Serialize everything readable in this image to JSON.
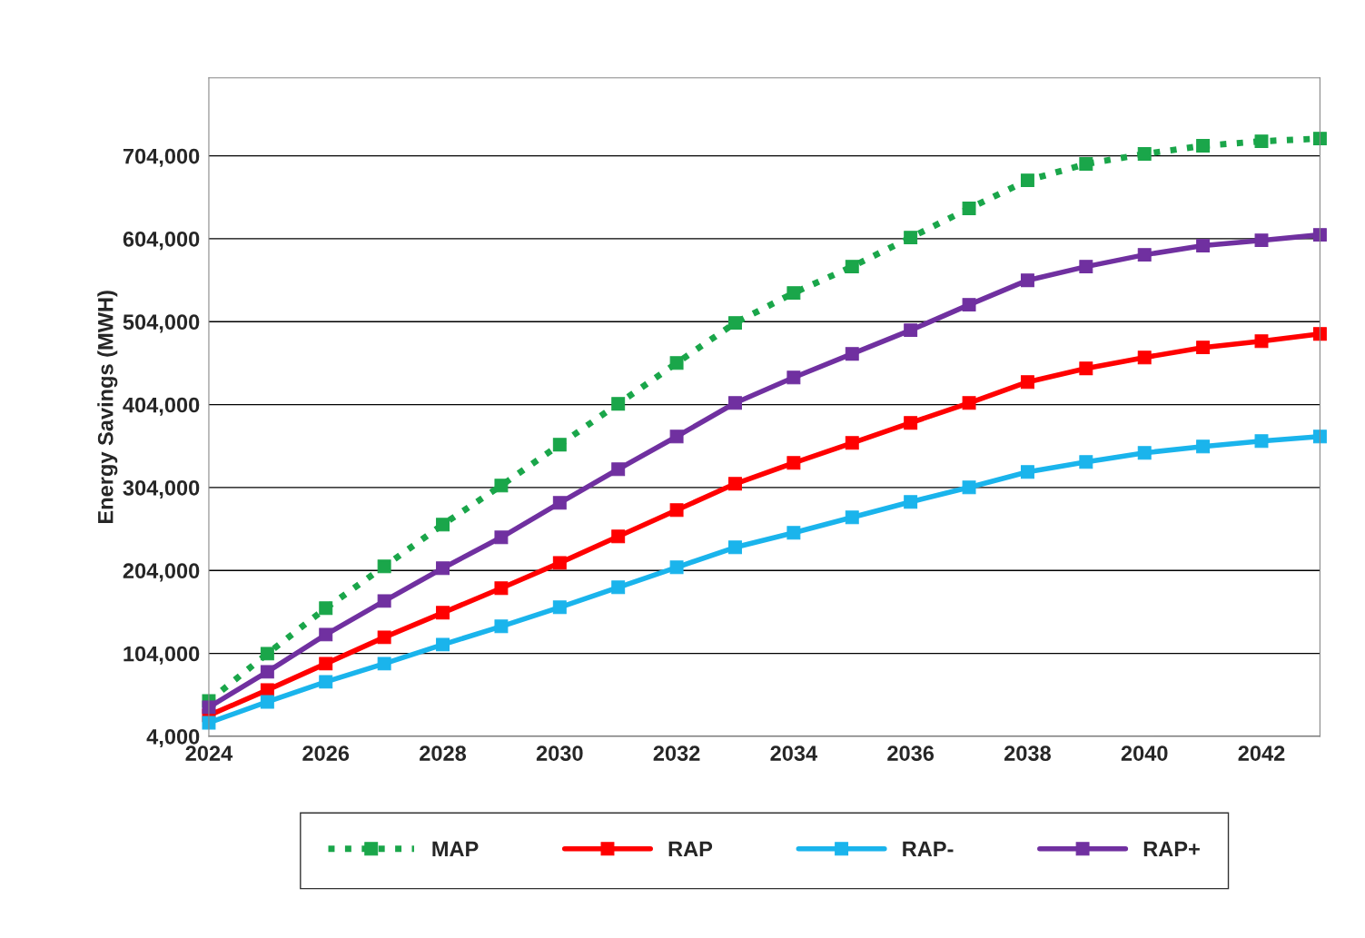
{
  "chart_data": {
    "type": "line",
    "ylabel": "Energy Savings (MWH)",
    "x": [
      2024,
      2025,
      2026,
      2027,
      2028,
      2029,
      2030,
      2031,
      2032,
      2033,
      2034,
      2035,
      2036,
      2037,
      2038,
      2039,
      2040,
      2041,
      2042,
      2043
    ],
    "series": [
      {
        "name": "MAP",
        "color": "#1aa64a",
        "line_style": "dotted",
        "values": [
          46700,
          103700,
          158500,
          208900,
          259300,
          306400,
          355700,
          405000,
          454200,
          502500,
          538600,
          570400,
          605400,
          640500,
          674400,
          694200,
          706200,
          716100,
          721500,
          724800
        ]
      },
      {
        "name": "RAP",
        "color": "#ff0000",
        "line_style": "solid",
        "values": [
          29200,
          59900,
          91600,
          123400,
          153000,
          182600,
          213200,
          245000,
          276800,
          308500,
          333700,
          357800,
          382000,
          406000,
          431200,
          447700,
          460800,
          472900,
          480500,
          489300
        ]
      },
      {
        "name": "RAP-",
        "color": "#1ab4ec",
        "line_style": "solid",
        "values": [
          20400,
          45600,
          69700,
          91600,
          114600,
          136600,
          159600,
          183700,
          207800,
          231900,
          249400,
          268000,
          286600,
          304200,
          322800,
          334800,
          345800,
          353500,
          360000,
          365500
        ]
      },
      {
        "name": "RAP+",
        "color": "#7030a0",
        "line_style": "solid",
        "values": [
          39100,
          81800,
          126700,
          167200,
          206700,
          243900,
          285500,
          326100,
          365500,
          406000,
          436700,
          465200,
          493700,
          524400,
          553900,
          570400,
          584600,
          595600,
          602100,
          608700
        ]
      }
    ],
    "xlim": [
      2024,
      2043
    ],
    "xticks": [
      2024,
      2026,
      2028,
      2030,
      2032,
      2034,
      2036,
      2038,
      2040,
      2042
    ],
    "ylim": [
      4000,
      798000
    ],
    "yticks": [
      {
        "value": 4000,
        "label": "4,000"
      },
      {
        "value": 104000,
        "label": "104,000"
      },
      {
        "value": 204000,
        "label": "204,000"
      },
      {
        "value": 304000,
        "label": "304,000"
      },
      {
        "value": 404000,
        "label": "404,000"
      },
      {
        "value": 504000,
        "label": "504,000"
      },
      {
        "value": 604000,
        "label": "604,000"
      },
      {
        "value": 704000,
        "label": "704,000"
      }
    ],
    "grid": "y",
    "legend": "bottom",
    "marker": "square"
  }
}
